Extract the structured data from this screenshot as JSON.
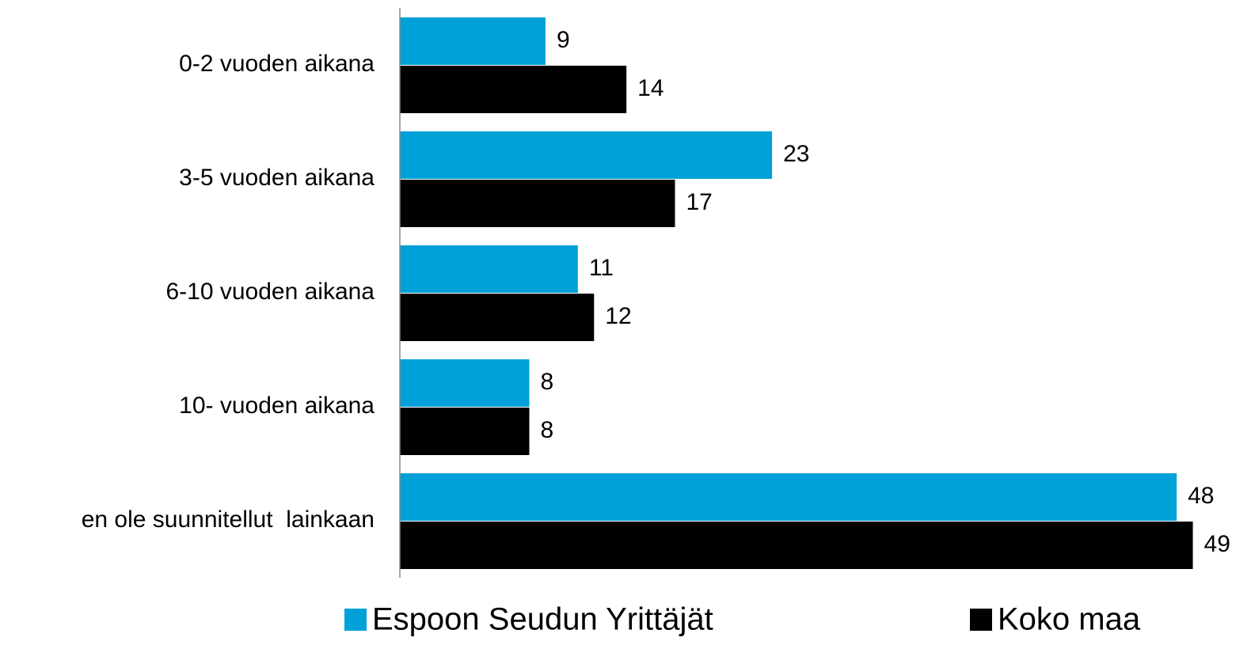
{
  "chart_data": {
    "type": "hbar",
    "categories": [
      "0-2 vuoden aikana",
      "3-5 vuoden aikana",
      "6-10 vuoden aikana",
      "10- vuoden aikana",
      "en ole suunnitellut  lainkaan"
    ],
    "series": [
      {
        "name": "Espoon Seudun Yrittäjät",
        "color": "#00a1d9",
        "values": [
          9,
          23,
          11,
          8,
          48
        ]
      },
      {
        "name": "Koko maa",
        "color": "#000000",
        "values": [
          14,
          17,
          12,
          8,
          49
        ]
      }
    ],
    "xlim": [
      0,
      50
    ],
    "legend": "bottom"
  }
}
